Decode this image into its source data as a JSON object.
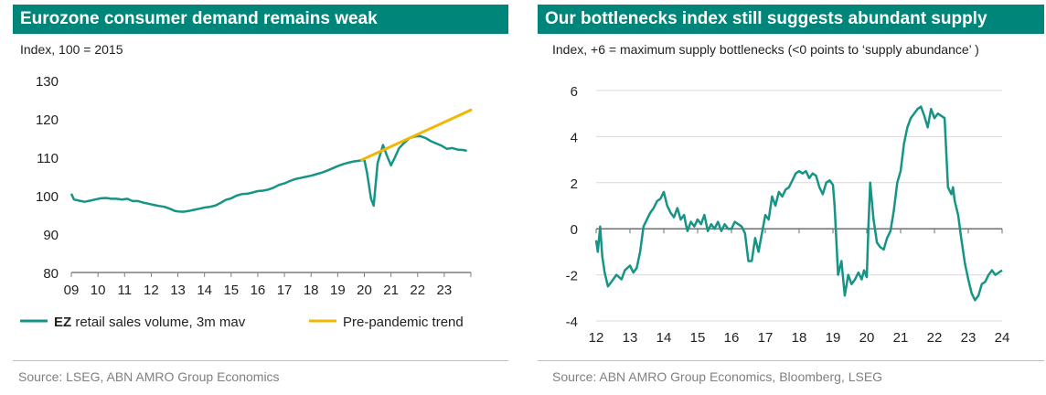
{
  "chart_data": [
    {
      "type": "line",
      "title": "Eurozone consumer demand remains weak",
      "subtitle": "Index, 100 = 2015",
      "source": "Source: LSEG, ABN AMRO Group Economics",
      "x_tick_labels": [
        "09",
        "10",
        "11",
        "12",
        "13",
        "14",
        "15",
        "16",
        "17",
        "18",
        "19",
        "20",
        "21",
        "22",
        "23"
      ],
      "xlim": [
        2009,
        2024
      ],
      "ylim": [
        80,
        130
      ],
      "y_ticks": [
        "80",
        "90",
        "100",
        "110",
        "120",
        "130"
      ],
      "legend_position": "bottom",
      "grid": false,
      "series": [
        {
          "name": "EZ retail sales volume, 3m mav",
          "color": "#169485",
          "x": [
            2009.0,
            2009.1,
            2009.3,
            2009.5,
            2009.7,
            2009.9,
            2010.1,
            2010.3,
            2010.5,
            2010.7,
            2010.9,
            2011.1,
            2011.3,
            2011.5,
            2011.7,
            2011.9,
            2012.1,
            2012.3,
            2012.5,
            2012.7,
            2012.9,
            2013.0,
            2013.2,
            2013.4,
            2013.6,
            2013.8,
            2014.0,
            2014.2,
            2014.4,
            2014.6,
            2014.8,
            2015.0,
            2015.2,
            2015.4,
            2015.6,
            2015.8,
            2016.0,
            2016.2,
            2016.4,
            2016.6,
            2016.8,
            2017.0,
            2017.2,
            2017.4,
            2017.6,
            2017.8,
            2018.0,
            2018.2,
            2018.4,
            2018.6,
            2018.8,
            2019.0,
            2019.2,
            2019.4,
            2019.6,
            2019.8,
            2020.0,
            2020.1,
            2020.25,
            2020.35,
            2020.5,
            2020.7,
            2020.85,
            2021.0,
            2021.15,
            2021.3,
            2021.5,
            2021.7,
            2021.9,
            2022.1,
            2022.3,
            2022.5,
            2022.7,
            2022.9,
            2023.1,
            2023.3,
            2023.5,
            2023.7,
            2023.85
          ],
          "values": [
            100.5,
            99.0,
            98.7,
            98.4,
            98.7,
            99.0,
            99.3,
            99.4,
            99.2,
            99.2,
            99.0,
            99.2,
            98.6,
            98.6,
            98.2,
            97.9,
            97.6,
            97.3,
            97.1,
            96.6,
            96.0,
            95.9,
            95.8,
            96.0,
            96.3,
            96.6,
            96.9,
            97.1,
            97.4,
            98.1,
            98.9,
            99.3,
            100.0,
            100.4,
            100.5,
            100.8,
            101.2,
            101.3,
            101.6,
            102.1,
            102.8,
            103.2,
            103.8,
            104.3,
            104.6,
            104.9,
            105.2,
            105.6,
            106.0,
            106.5,
            107.1,
            107.7,
            108.2,
            108.6,
            108.9,
            109.1,
            109.3,
            106.0,
            99.2,
            97.4,
            108.5,
            113.2,
            110.4,
            107.9,
            110.0,
            112.3,
            113.8,
            115.0,
            115.4,
            115.5,
            115.0,
            114.2,
            113.6,
            113.0,
            112.2,
            112.4,
            112.0,
            111.9,
            111.7
          ]
        },
        {
          "name": "Pre-pandemic trend",
          "color": "#f2b705",
          "x": [
            2019.9,
            2024.0
          ],
          "values": [
            109.3,
            122.3
          ]
        }
      ]
    },
    {
      "type": "line",
      "title": "Our bottlenecks index still suggests abundant supply",
      "subtitle": "Index, +6 = maximum supply bottlenecks (<0 points to ‘supply abundance’ )",
      "source": "Source: ABN AMRO Group Economics, Bloomberg, LSEG",
      "x_tick_labels": [
        "12",
        "13",
        "14",
        "15",
        "16",
        "17",
        "18",
        "19",
        "20",
        "21",
        "22",
        "23",
        "24"
      ],
      "xlim": [
        2012,
        2024
      ],
      "ylim": [
        -4,
        6
      ],
      "y_ticks": [
        "-4",
        "-2",
        "0",
        "2",
        "4",
        "6"
      ],
      "grid": true,
      "series": [
        {
          "name": "",
          "color": "#169485",
          "x": [
            2012.0,
            2012.05,
            2012.12,
            2012.18,
            2012.25,
            2012.35,
            2012.45,
            2012.6,
            2012.75,
            2012.85,
            2013.0,
            2013.1,
            2013.2,
            2013.3,
            2013.4,
            2013.5,
            2013.6,
            2013.7,
            2013.8,
            2013.9,
            2014.0,
            2014.1,
            2014.2,
            2014.3,
            2014.4,
            2014.5,
            2014.6,
            2014.65,
            2014.7,
            2014.8,
            2014.9,
            2015.0,
            2015.1,
            2015.2,
            2015.3,
            2015.4,
            2015.5,
            2015.6,
            2015.7,
            2015.8,
            2015.9,
            2016.0,
            2016.1,
            2016.2,
            2016.3,
            2016.4,
            2016.5,
            2016.6,
            2016.7,
            2016.8,
            2016.9,
            2017.0,
            2017.1,
            2017.2,
            2017.3,
            2017.4,
            2017.5,
            2017.6,
            2017.7,
            2017.8,
            2017.9,
            2018.0,
            2018.1,
            2018.2,
            2018.3,
            2018.4,
            2018.5,
            2018.6,
            2018.7,
            2018.8,
            2018.9,
            2019.0,
            2019.05,
            2019.1,
            2019.15,
            2019.25,
            2019.35,
            2019.45,
            2019.55,
            2019.65,
            2019.75,
            2019.85,
            2019.92,
            2020.0,
            2020.05,
            2020.1,
            2020.2,
            2020.3,
            2020.4,
            2020.5,
            2020.6,
            2020.7,
            2020.8,
            2020.9,
            2021.0,
            2021.1,
            2021.2,
            2021.3,
            2021.4,
            2021.5,
            2021.6,
            2021.7,
            2021.8,
            2021.9,
            2022.0,
            2022.1,
            2022.2,
            2022.3,
            2022.4,
            2022.5,
            2022.55,
            2022.6,
            2022.7,
            2022.8,
            2022.9,
            2023.0,
            2023.1,
            2023.2,
            2023.3,
            2023.4,
            2023.5,
            2023.6,
            2023.7,
            2023.8,
            2023.9,
            2024.0
          ],
          "values": [
            -0.5,
            -1.0,
            0.1,
            -1.2,
            -1.9,
            -2.5,
            -2.3,
            -2.0,
            -2.2,
            -1.8,
            -1.6,
            -1.9,
            -1.7,
            -1.0,
            0.1,
            0.4,
            0.7,
            0.9,
            1.2,
            1.3,
            1.6,
            1.0,
            0.7,
            0.5,
            0.9,
            0.4,
            0.6,
            0.2,
            -0.1,
            0.3,
            0.1,
            0.4,
            0.2,
            0.6,
            -0.1,
            0.2,
            0.0,
            0.3,
            -0.1,
            0.2,
            0.0,
            0.0,
            0.3,
            0.2,
            0.1,
            -0.2,
            -1.4,
            -1.4,
            -0.4,
            -1.0,
            -0.2,
            0.6,
            0.4,
            1.4,
            1.0,
            1.6,
            1.4,
            1.7,
            1.8,
            2.1,
            2.4,
            2.5,
            2.4,
            2.5,
            2.2,
            2.4,
            2.3,
            1.8,
            1.5,
            2.0,
            2.1,
            1.9,
            1.0,
            -0.5,
            -2.0,
            -1.4,
            -2.9,
            -2.0,
            -2.4,
            -2.2,
            -1.9,
            -2.2,
            -1.8,
            -2.1,
            0.1,
            2.0,
            0.4,
            -0.6,
            -0.8,
            -0.9,
            -0.4,
            -0.1,
            0.8,
            2.0,
            2.5,
            3.7,
            4.4,
            4.8,
            5.0,
            5.2,
            5.3,
            4.9,
            4.4,
            5.2,
            4.8,
            5.0,
            4.9,
            4.8,
            1.8,
            1.5,
            1.8,
            1.2,
            0.6,
            -0.5,
            -1.5,
            -2.2,
            -2.8,
            -3.1,
            -2.9,
            -2.4,
            -2.3,
            -2.0,
            -1.8,
            -2.0,
            -1.9,
            -1.8
          ]
        }
      ]
    }
  ]
}
